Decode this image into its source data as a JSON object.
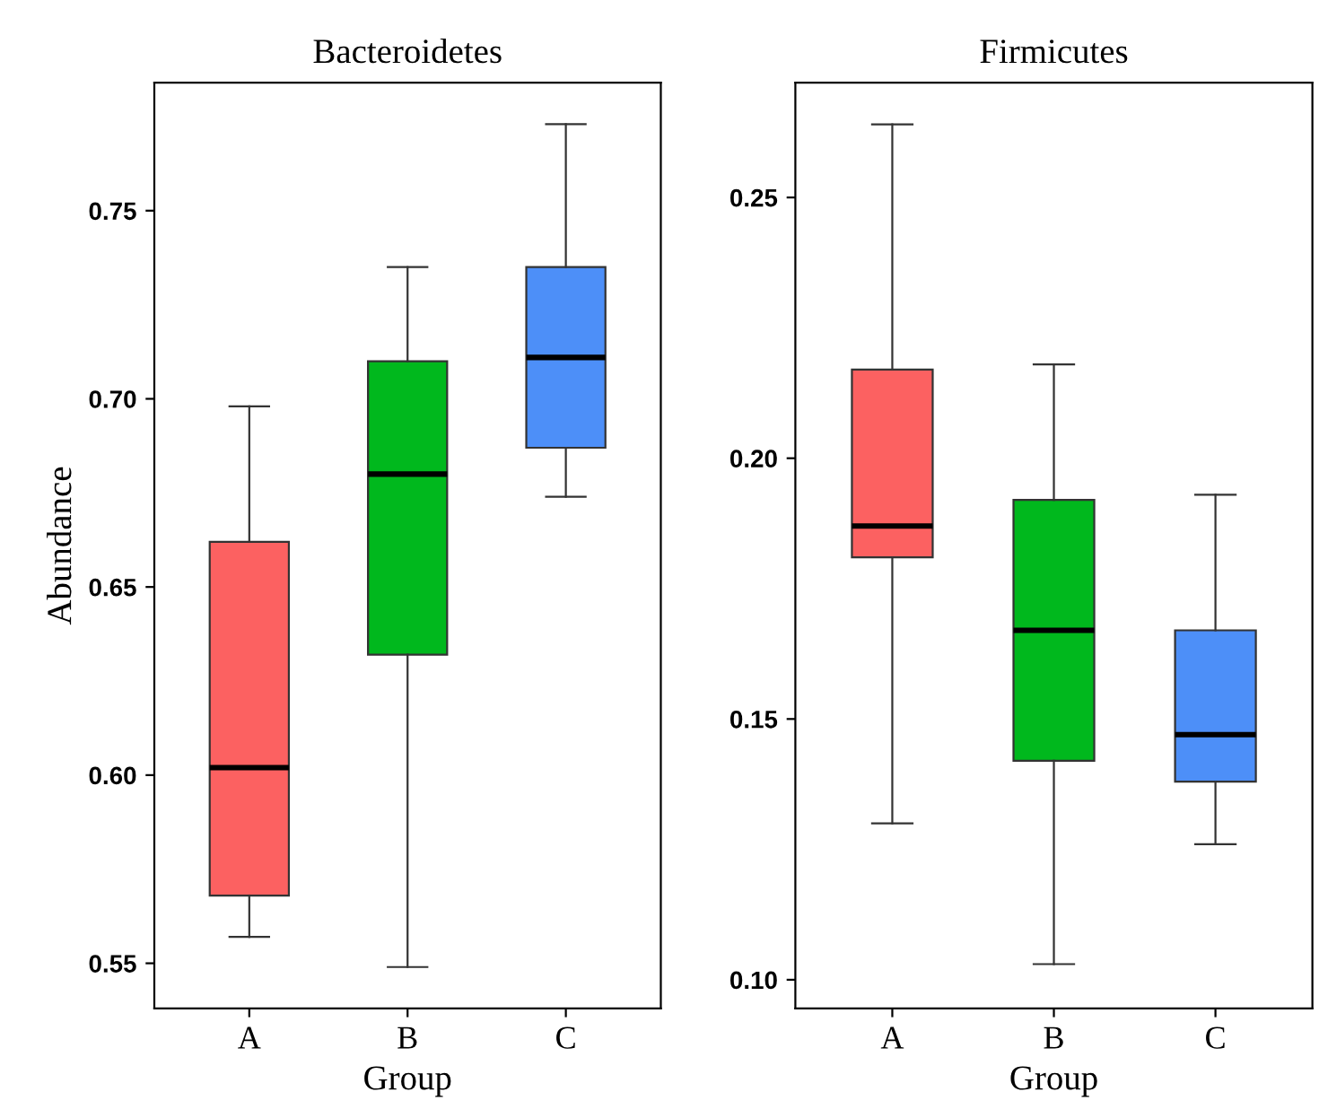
{
  "chart_data": [
    {
      "type": "box",
      "title": "Bacteroidetes",
      "xlabel": "Group",
      "ylabel": "Abundance",
      "categories": [
        "A",
        "B",
        "C"
      ],
      "colors": [
        "#fc6161",
        "#00b81d",
        "#4d8ff8"
      ],
      "ylim": [
        0.538,
        0.784
      ],
      "yticks": [
        0.55,
        {
          "value": 0.6,
          "label": "0.60"
        },
        0.65,
        {
          "value": 0.7,
          "label": "0.70"
        },
        0.75
      ],
      "grid": false,
      "legend": false,
      "boxes": [
        {
          "low": 0.557,
          "q1": 0.568,
          "median": 0.602,
          "q3": 0.662,
          "high": 0.698
        },
        {
          "low": 0.549,
          "q1": 0.632,
          "median": 0.68,
          "q3": 0.71,
          "high": 0.735
        },
        {
          "low": 0.674,
          "q1": 0.687,
          "median": 0.711,
          "q3": 0.735,
          "high": 0.773
        }
      ]
    },
    {
      "type": "box",
      "title": "Firmicutes",
      "xlabel": "Group",
      "categories": [
        "A",
        "B",
        "C"
      ],
      "colors": [
        "#fc6161",
        "#00b81d",
        "#4d8ff8"
      ],
      "ylim": [
        0.0945,
        0.272
      ],
      "yticks": [
        {
          "value": 0.1,
          "label": "0.10"
        },
        0.15,
        {
          "value": 0.2,
          "label": "0.20"
        },
        0.25
      ],
      "grid": false,
      "legend": false,
      "boxes": [
        {
          "low": 0.13,
          "q1": 0.181,
          "median": 0.187,
          "q3": 0.217,
          "high": 0.264
        },
        {
          "low": 0.103,
          "q1": 0.142,
          "median": 0.167,
          "q3": 0.192,
          "high": 0.218
        },
        {
          "low": 0.126,
          "q1": 0.138,
          "median": 0.147,
          "q3": 0.167,
          "high": 0.193
        }
      ]
    }
  ]
}
